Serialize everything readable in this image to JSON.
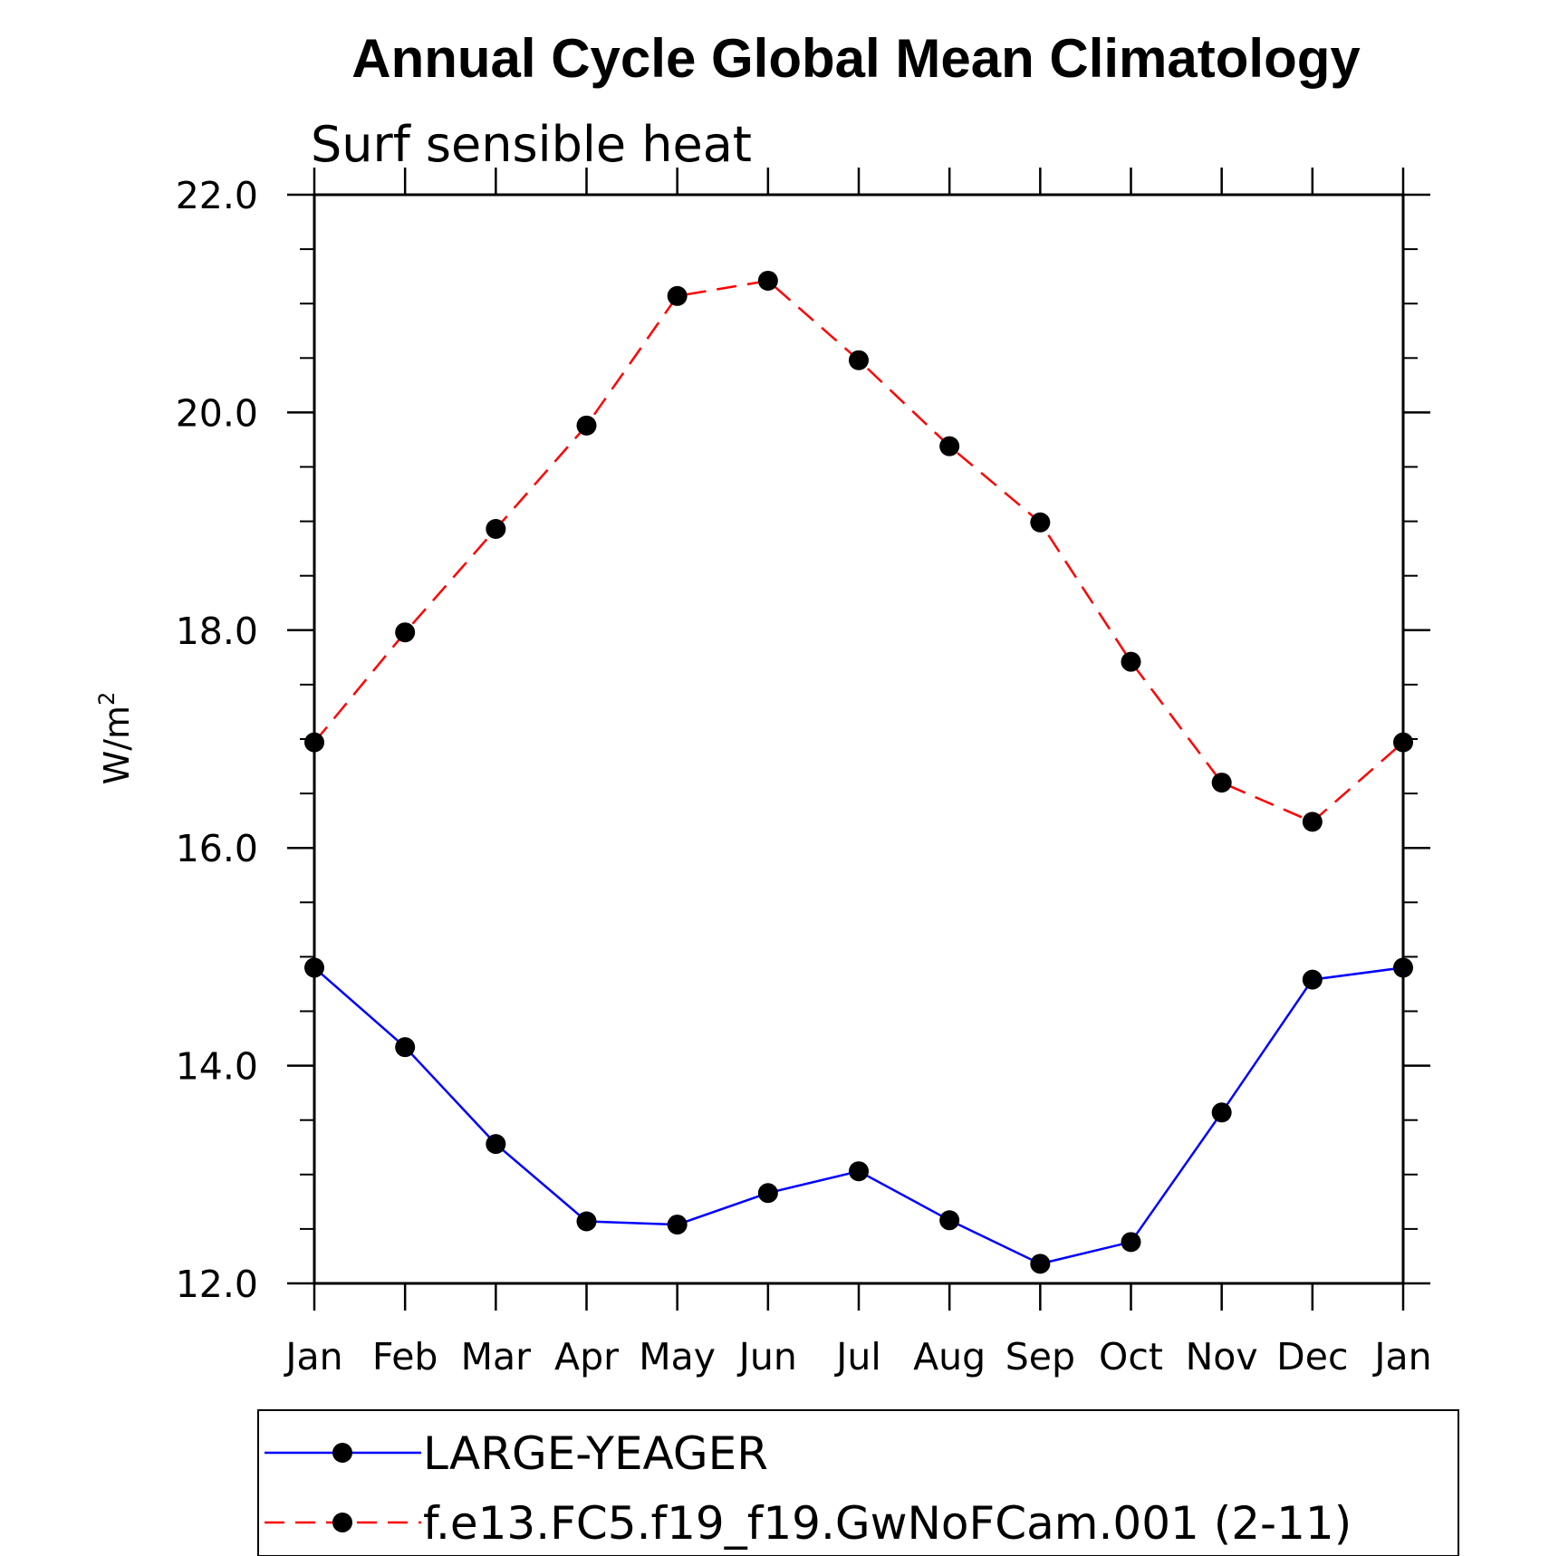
{
  "chart_data": {
    "type": "line",
    "title": "Annual Cycle Global Mean Climatology",
    "subtitle": "Surf sensible heat",
    "xlabel": "",
    "ylabel": "W/m",
    "ylabel_superscript": "2",
    "categories": [
      "Jan",
      "Feb",
      "Mar",
      "Apr",
      "May",
      "Jun",
      "Jul",
      "Aug",
      "Sep",
      "Oct",
      "Nov",
      "Dec",
      "Jan"
    ],
    "ylim": [
      12.0,
      22.0
    ],
    "yticks": [
      "12.0",
      "14.0",
      "16.0",
      "18.0",
      "20.0",
      "22.0"
    ],
    "yticks_values": [
      12,
      14,
      16,
      18,
      20,
      22
    ],
    "yminor_step": 0.5,
    "grid": false,
    "legend_position": "bottom",
    "series": [
      {
        "name": "LARGE-YEAGER",
        "color": "#0000ff",
        "dash": "solid",
        "marker": "filled-circle",
        "values": [
          14.9,
          14.17,
          13.28,
          12.57,
          12.54,
          12.83,
          13.03,
          12.58,
          12.18,
          12.38,
          13.57,
          14.79,
          14.9
        ]
      },
      {
        "name": "f.e13.FC5.f19_f19.GwNoFCam.001 (2-11)",
        "color": "#ff0000",
        "dash": "dashed",
        "marker": "filled-circle",
        "values": [
          16.97,
          17.98,
          18.93,
          19.88,
          21.07,
          21.21,
          20.48,
          19.69,
          18.99,
          17.71,
          16.6,
          16.24,
          16.97
        ]
      }
    ]
  }
}
